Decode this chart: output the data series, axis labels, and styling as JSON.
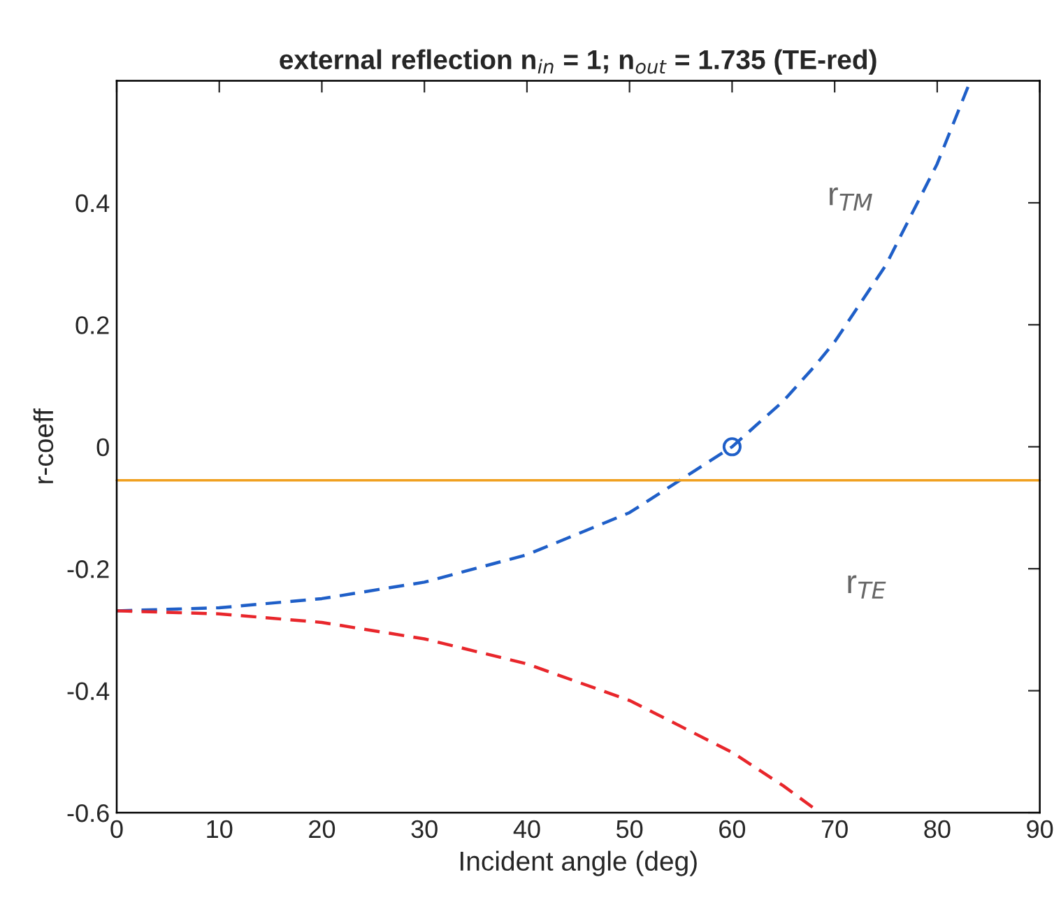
{
  "chart_data": {
    "type": "line",
    "title": "external reflection n$_{in}$ = 1; n$_{out}$ = 1.735 (TE-red)",
    "xlabel": "Incident angle (deg)",
    "ylabel": "r-coeff",
    "series": [
      {
        "color": "#1f5fc8",
        "line_style": "dashed",
        "marker": "none",
        "x": [
          0,
          10,
          20,
          30,
          40,
          50,
          60,
          65,
          68,
          70,
          75,
          80,
          83
        ],
        "values": [
          -0.269,
          -0.264,
          -0.249,
          -0.222,
          -0.177,
          -0.108,
          0.0,
          0.075,
          0.131,
          0.172,
          0.298,
          0.464,
          0.59
        ]
      },
      {
        "color": "#e8262b",
        "line_style": "dashed",
        "marker": "none",
        "x": [
          0,
          10,
          20,
          30,
          40,
          50,
          60,
          65,
          68
        ],
        "values": [
          -0.269,
          -0.274,
          -0.288,
          -0.315,
          -0.356,
          -0.416,
          -0.501,
          -0.556,
          -0.593
        ]
      },
      {
        "type": "scatter",
        "color": "#1f5fc8",
        "marker": "circle",
        "x": [
          60
        ],
        "values": [
          0.0
        ]
      }
    ],
    "ref_lines": [
      {
        "axis": "y",
        "value": -0.055,
        "color": "#f0a020",
        "line_style": "solid"
      }
    ],
    "annotations": [
      "r$_{TM}$",
      "r$_{TE}$"
    ],
    "xlim": [
      0,
      90
    ],
    "ylim": [
      -0.6,
      0.6
    ],
    "xticks": [
      0,
      10,
      20,
      30,
      40,
      50,
      60,
      70,
      80,
      90
    ],
    "yticks": [
      -0.6,
      -0.4,
      -0.2,
      0,
      0.2,
      0.4
    ],
    "grid": false,
    "legend": false
  }
}
